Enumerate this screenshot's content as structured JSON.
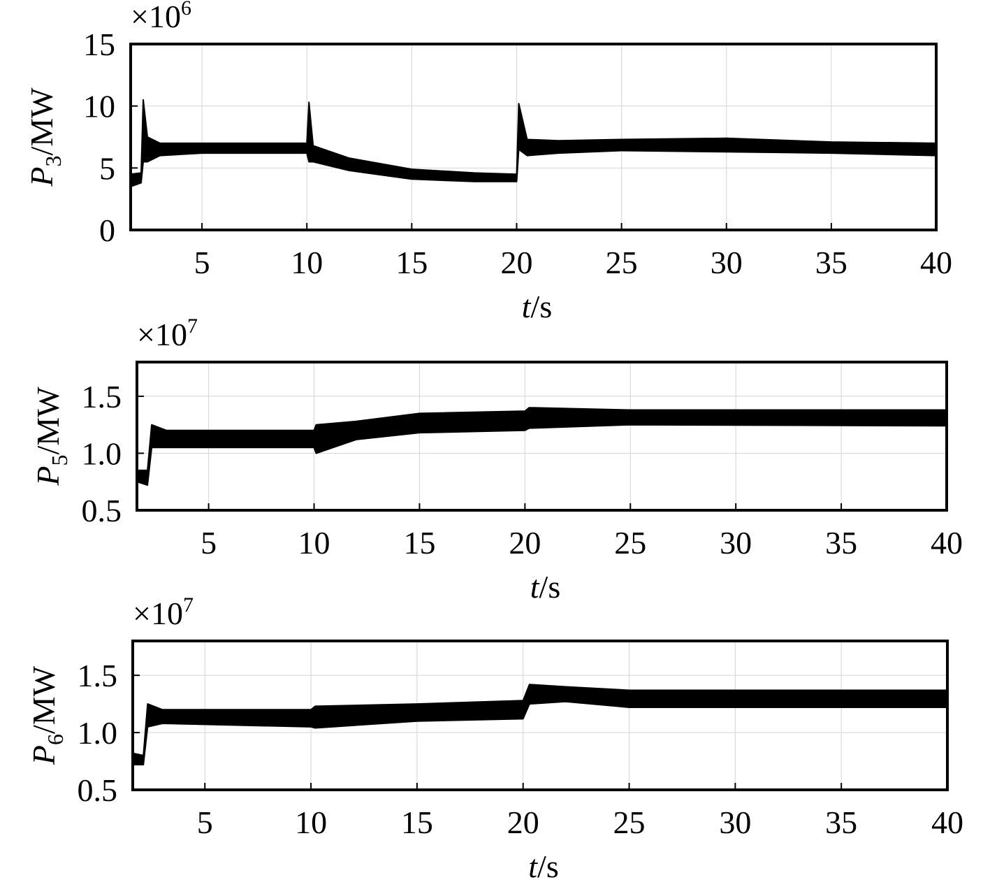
{
  "chart_data": [
    {
      "type": "band",
      "scale_base": "×10",
      "scale_power": "6",
      "ylabel_symbol": "P",
      "ylabel_subscript": "3",
      "ylabel_unit": "/MW",
      "xlabel_symbol": "t",
      "xlabel_unit": "/s",
      "color": "#000000",
      "grid": true,
      "xlim": [
        1.6,
        40
      ],
      "xticks": [
        5,
        10,
        15,
        20,
        25,
        30,
        35,
        40
      ],
      "ylim": [
        0,
        15
      ],
      "yticks": [
        0,
        5,
        10,
        15
      ],
      "x": [
        1.6,
        2.1,
        2.2,
        2.4,
        3,
        5,
        10,
        10.1,
        10.3,
        12,
        15,
        18,
        20,
        20.1,
        20.5,
        22,
        25,
        30,
        35,
        40
      ],
      "low": [
        3.5,
        3.8,
        5.5,
        5.5,
        6.0,
        6.2,
        6.2,
        5.5,
        5.5,
        4.8,
        4.1,
        3.9,
        3.9,
        6.5,
        6.0,
        6.2,
        6.4,
        6.3,
        6.2,
        6.0
      ],
      "high": [
        4.5,
        4.6,
        10.5,
        7.5,
        7.0,
        7.0,
        7.0,
        10.3,
        6.8,
        5.8,
        4.9,
        4.6,
        4.5,
        10.2,
        7.3,
        7.2,
        7.3,
        7.4,
        7.1,
        7.0
      ]
    },
    {
      "type": "band",
      "scale_base": "×10",
      "scale_power": "7",
      "ylabel_symbol": "P",
      "ylabel_subscript": "5",
      "ylabel_unit": "/MW",
      "xlabel_symbol": "t",
      "xlabel_unit": "/s",
      "color": "#000000",
      "grid": true,
      "xlim": [
        1.6,
        40
      ],
      "xticks": [
        5,
        10,
        15,
        20,
        25,
        30,
        35,
        40
      ],
      "ylim": [
        0.5,
        1.8
      ],
      "yticks": [
        0.5,
        {
          "value": 1,
          "label": "1.0"
        },
        1.5
      ],
      "x": [
        1.6,
        2.1,
        2.3,
        3,
        10,
        10.1,
        12,
        15,
        20,
        20.2,
        25,
        40
      ],
      "low": [
        0.75,
        0.72,
        1.05,
        1.05,
        1.05,
        1.0,
        1.12,
        1.18,
        1.2,
        1.22,
        1.25,
        1.24
      ],
      "high": [
        0.85,
        0.85,
        1.25,
        1.2,
        1.2,
        1.25,
        1.28,
        1.35,
        1.37,
        1.4,
        1.38,
        1.38
      ]
    },
    {
      "type": "band",
      "scale_base": "×10",
      "scale_power": "7",
      "ylabel_symbol": "P",
      "ylabel_subscript": "6",
      "ylabel_unit": "/MW",
      "xlabel_symbol": "t",
      "xlabel_unit": "/s",
      "color": "#000000",
      "grid": true,
      "xlim": [
        1.6,
        40
      ],
      "xticks": [
        5,
        10,
        15,
        20,
        25,
        30,
        35,
        40
      ],
      "ylim": [
        0.5,
        1.8
      ],
      "yticks": [
        0.5,
        {
          "value": 1,
          "label": "1.0"
        },
        1.5
      ],
      "x": [
        1.6,
        2.1,
        2.3,
        3,
        10,
        10.2,
        15,
        20,
        20.3,
        22,
        25,
        40
      ],
      "low": [
        0.72,
        0.72,
        1.05,
        1.08,
        1.05,
        1.04,
        1.1,
        1.12,
        1.25,
        1.27,
        1.22,
        1.22
      ],
      "high": [
        0.82,
        0.8,
        1.25,
        1.2,
        1.2,
        1.23,
        1.25,
        1.28,
        1.42,
        1.4,
        1.37,
        1.37
      ]
    }
  ]
}
